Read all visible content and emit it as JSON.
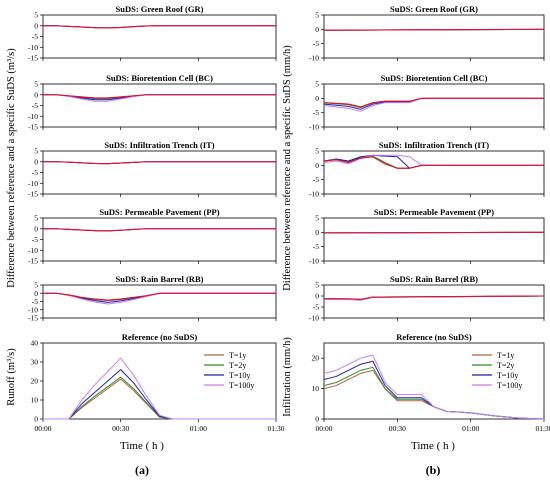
{
  "figure": {
    "panel_labels": [
      "(a)",
      "(b)"
    ],
    "left_ylabel_top": "Difference between reference and a specific SuDS (m³/s)",
    "right_ylabel_top": "Difference between reference and a specific SuDS (mm/h)",
    "left_ylabel_bottom": "Runoff (m³/s)",
    "right_ylabel_bottom": "Infiltration (mm/h)",
    "xlabel": "Time ( h )",
    "xticks": [
      "00:00",
      "00:30",
      "01:00",
      "01:30"
    ],
    "legend": [
      "T=1y",
      "T=2y",
      "T=10y",
      "T=100y"
    ],
    "colors": {
      "T=1y": "#b0643c",
      "T=2y": "#2e8b2e",
      "T=10y": "#1f1fb4",
      "T=100y": "#c87ef0",
      "red": "#e0102a"
    }
  },
  "chart_data": [
    {
      "type": "line",
      "title": "SuDS: Green Roof (GR)",
      "ylim": [
        -15,
        5
      ],
      "yticks": [
        5,
        0,
        -5,
        -10,
        -15
      ],
      "x": [
        0,
        5,
        10,
        15,
        20,
        25,
        30,
        35,
        40,
        45,
        90
      ],
      "series": [
        {
          "name": "T=1y",
          "values": [
            0,
            0,
            -0.3,
            -0.6,
            -0.9,
            -1.0,
            -0.8,
            -0.4,
            -0.1,
            0,
            0
          ]
        },
        {
          "name": "T=2y",
          "values": [
            0,
            0,
            -0.3,
            -0.6,
            -0.9,
            -1.0,
            -0.8,
            -0.4,
            -0.1,
            0,
            0
          ]
        },
        {
          "name": "T=10y",
          "values": [
            0,
            0,
            -0.3,
            -0.6,
            -0.9,
            -1.0,
            -0.8,
            -0.4,
            -0.1,
            0,
            0
          ]
        },
        {
          "name": "T=100y",
          "values": [
            0,
            0,
            -0.3,
            -0.6,
            -0.9,
            -1.0,
            -0.8,
            -0.4,
            -0.1,
            0,
            0
          ]
        }
      ]
    },
    {
      "type": "line",
      "title": "SuDS: Bioretention Cell (BC)",
      "ylim": [
        -15,
        5
      ],
      "yticks": [
        5,
        0,
        -5,
        -10,
        -15
      ],
      "x": [
        0,
        5,
        10,
        15,
        20,
        25,
        30,
        35,
        40,
        45,
        90
      ],
      "series": [
        {
          "name": "T=1y",
          "values": [
            0,
            0,
            -0.5,
            -1.0,
            -1.5,
            -1.5,
            -1.0,
            -0.5,
            0,
            0,
            0
          ]
        },
        {
          "name": "T=2y",
          "values": [
            0,
            0,
            -0.5,
            -1.2,
            -1.8,
            -1.8,
            -1.2,
            -0.6,
            0,
            0,
            0
          ]
        },
        {
          "name": "T=10y",
          "values": [
            0,
            0,
            -0.6,
            -1.5,
            -2.3,
            -2.3,
            -1.5,
            -0.7,
            0,
            0,
            0
          ]
        },
        {
          "name": "T=100y",
          "values": [
            0,
            0,
            -0.8,
            -2.0,
            -3.0,
            -3.0,
            -2.0,
            -0.9,
            0,
            0,
            0
          ]
        }
      ]
    },
    {
      "type": "line",
      "title": "SuDS: Infiltration Trench (IT)",
      "ylim": [
        -15,
        5
      ],
      "yticks": [
        5,
        0,
        -5,
        -10,
        -15
      ],
      "x": [
        0,
        5,
        10,
        15,
        20,
        25,
        30,
        35,
        40,
        45,
        90
      ],
      "series": [
        {
          "name": "T=1y",
          "values": [
            0,
            0,
            -0.2,
            -0.5,
            -0.8,
            -0.9,
            -0.6,
            -0.3,
            0,
            0,
            0
          ]
        },
        {
          "name": "T=2y",
          "values": [
            0,
            0,
            -0.2,
            -0.5,
            -0.8,
            -0.9,
            -0.6,
            -0.3,
            0,
            0,
            0
          ]
        },
        {
          "name": "T=10y",
          "values": [
            0,
            0,
            -0.2,
            -0.5,
            -0.8,
            -0.9,
            -0.6,
            -0.3,
            0,
            0,
            0
          ]
        },
        {
          "name": "T=100y",
          "values": [
            0,
            0,
            -0.2,
            -0.5,
            -0.8,
            -0.9,
            -0.6,
            -0.3,
            0,
            0,
            0
          ]
        }
      ]
    },
    {
      "type": "line",
      "title": "SuDS:  Permeable Pavement (PP)",
      "ylim": [
        -15,
        5
      ],
      "yticks": [
        5,
        0,
        -5,
        -10,
        -15
      ],
      "x": [
        0,
        5,
        10,
        15,
        20,
        25,
        30,
        35,
        40,
        45,
        90
      ],
      "series": [
        {
          "name": "T=1y",
          "values": [
            0,
            0,
            -0.3,
            -0.6,
            -0.9,
            -1.0,
            -0.7,
            -0.3,
            0,
            0,
            0
          ]
        },
        {
          "name": "T=2y",
          "values": [
            0,
            0,
            -0.3,
            -0.6,
            -0.9,
            -1.0,
            -0.7,
            -0.3,
            0,
            0,
            0
          ]
        },
        {
          "name": "T=10y",
          "values": [
            0,
            0,
            -0.3,
            -0.6,
            -0.9,
            -1.0,
            -0.7,
            -0.3,
            0,
            0,
            0
          ]
        },
        {
          "name": "T=100y",
          "values": [
            0,
            0,
            -0.3,
            -0.6,
            -0.9,
            -1.0,
            -0.7,
            -0.3,
            0,
            0,
            0
          ]
        }
      ]
    },
    {
      "type": "line",
      "title": "SuDS: Rain Barrel (RB)",
      "ylim": [
        -15,
        5
      ],
      "yticks": [
        5,
        0,
        -5,
        -10,
        -15
      ],
      "x": [
        0,
        5,
        10,
        15,
        20,
        25,
        30,
        35,
        40,
        45,
        90
      ],
      "series": [
        {
          "name": "T=1y",
          "values": [
            0,
            0,
            -1.0,
            -2.5,
            -3.5,
            -4.2,
            -3.5,
            -2.5,
            -1.5,
            0,
            0
          ]
        },
        {
          "name": "T=2y",
          "values": [
            0,
            0,
            -1.1,
            -2.7,
            -3.8,
            -4.5,
            -3.8,
            -2.7,
            -1.6,
            0,
            0
          ]
        },
        {
          "name": "T=10y",
          "values": [
            0,
            0,
            -1.2,
            -3.0,
            -4.5,
            -5.5,
            -4.6,
            -3.2,
            -1.8,
            0,
            0
          ]
        },
        {
          "name": "T=100y",
          "values": [
            0,
            0,
            -1.4,
            -3.5,
            -5.3,
            -6.5,
            -5.5,
            -3.8,
            -2.0,
            0,
            0
          ]
        }
      ]
    },
    {
      "type": "line",
      "title": "Reference (no SuDS)",
      "ylim": [
        0,
        40
      ],
      "yticks": [
        0,
        10,
        20,
        30,
        40
      ],
      "x": [
        0,
        10,
        15,
        20,
        25,
        30,
        35,
        40,
        45,
        50,
        90
      ],
      "series": [
        {
          "name": "T=1y",
          "values": [
            0,
            0,
            6,
            11,
            16,
            21,
            15,
            8,
            1,
            0,
            0
          ]
        },
        {
          "name": "T=2y",
          "values": [
            0,
            0,
            6.5,
            12,
            17,
            22,
            16,
            8.5,
            1.2,
            0,
            0
          ]
        },
        {
          "name": "T=10y",
          "values": [
            0,
            0,
            8,
            14,
            20,
            26,
            19,
            10,
            1.5,
            0,
            0
          ]
        },
        {
          "name": "T=100y",
          "values": [
            0,
            0,
            10,
            18,
            25,
            32,
            23,
            12,
            2,
            0,
            0
          ]
        }
      ],
      "legend": "right"
    },
    {
      "type": "line",
      "title": "SuDS: Green Roof (GR)",
      "ylim": [
        -10,
        5
      ],
      "yticks": [
        5,
        0,
        -5,
        -10
      ],
      "x": [
        0,
        90
      ],
      "series": [
        {
          "name": "T=1y",
          "values": [
            -0.3,
            0
          ]
        },
        {
          "name": "T=2y",
          "values": [
            -0.3,
            0
          ]
        },
        {
          "name": "T=10y",
          "values": [
            -0.3,
            0
          ]
        },
        {
          "name": "T=100y",
          "values": [
            -0.3,
            0
          ]
        }
      ]
    },
    {
      "type": "line",
      "title": "SuDS: Bioretention Cell (BC)",
      "ylim": [
        -10,
        5
      ],
      "yticks": [
        5,
        0,
        -5,
        -10
      ],
      "x": [
        0,
        10,
        15,
        20,
        25,
        30,
        35,
        40,
        45,
        90
      ],
      "series": [
        {
          "name": "T=1y",
          "values": [
            -1.5,
            -2.0,
            -3.0,
            -1.5,
            -1.0,
            -1.0,
            -1.0,
            0,
            0,
            0
          ]
        },
        {
          "name": "T=2y",
          "values": [
            -1.6,
            -2.2,
            -3.2,
            -1.6,
            -1.1,
            -1.1,
            -1.1,
            0,
            0,
            0
          ]
        },
        {
          "name": "T=10y",
          "values": [
            -2.0,
            -2.8,
            -3.8,
            -2.0,
            -1.3,
            -1.3,
            -1.3,
            0,
            0,
            0
          ]
        },
        {
          "name": "T=100y",
          "values": [
            -2.5,
            -3.5,
            -4.5,
            -2.5,
            -1.5,
            -1.5,
            -1.5,
            0,
            0,
            0
          ]
        }
      ]
    },
    {
      "type": "line",
      "title": "SuDS: Infiltration Trench (IT)",
      "ylim": [
        -10,
        5
      ],
      "yticks": [
        5,
        0,
        -5,
        -10
      ],
      "x": [
        0,
        5,
        10,
        15,
        20,
        25,
        30,
        35,
        40,
        45,
        50,
        90
      ],
      "series": [
        {
          "name": "T=1y",
          "values": [
            1.5,
            2.0,
            1.0,
            2.5,
            3.0,
            0.5,
            -1.0,
            -1.0,
            0,
            0,
            0,
            0
          ]
        },
        {
          "name": "T=2y",
          "values": [
            1.5,
            2.0,
            1.2,
            2.8,
            3.2,
            1.0,
            -1.0,
            -1.0,
            0,
            0,
            0,
            0
          ]
        },
        {
          "name": "T=10y",
          "values": [
            1.5,
            2.2,
            1.5,
            3.0,
            3.5,
            3.2,
            3.0,
            -1.0,
            0,
            0,
            0,
            0
          ]
        },
        {
          "name": "T=100y",
          "values": [
            1.0,
            1.5,
            0.5,
            2.5,
            3.5,
            3.5,
            3.5,
            3.0,
            0,
            0,
            0,
            0
          ]
        }
      ]
    },
    {
      "type": "line",
      "title": "SuDS:  Permeable Pavement (PP)",
      "ylim": [
        -10,
        5
      ],
      "yticks": [
        5,
        0,
        -5,
        -10
      ],
      "x": [
        0,
        90
      ],
      "series": [
        {
          "name": "T=1y",
          "values": [
            -0.2,
            0
          ]
        },
        {
          "name": "T=2y",
          "values": [
            -0.2,
            0
          ]
        },
        {
          "name": "T=10y",
          "values": [
            -0.2,
            0
          ]
        },
        {
          "name": "T=100y",
          "values": [
            -0.2,
            0
          ]
        }
      ]
    },
    {
      "type": "line",
      "title": "SuDS: Rain Barrel (RB)",
      "ylim": [
        -10,
        5
      ],
      "yticks": [
        5,
        0,
        -5,
        -10
      ],
      "x": [
        0,
        10,
        15,
        20,
        90
      ],
      "series": [
        {
          "name": "T=1y",
          "values": [
            -1.2,
            -1.3,
            -1.5,
            -0.5,
            0
          ]
        },
        {
          "name": "T=2y",
          "values": [
            -1.3,
            -1.4,
            -1.6,
            -0.5,
            0
          ]
        },
        {
          "name": "T=10y",
          "values": [
            -1.4,
            -1.5,
            -1.8,
            -0.6,
            0
          ]
        },
        {
          "name": "T=100y",
          "values": [
            -1.5,
            -1.6,
            -2.0,
            -0.6,
            0
          ]
        }
      ]
    },
    {
      "type": "line",
      "title": "Reference (no SuDS)",
      "ylim": [
        0,
        25
      ],
      "yticks": [
        0,
        10,
        20
      ],
      "x": [
        0,
        5,
        10,
        15,
        20,
        25,
        30,
        35,
        40,
        45,
        50,
        55,
        60,
        70,
        80,
        90
      ],
      "series": [
        {
          "name": "T=1y",
          "values": [
            10,
            11,
            13,
            15,
            16,
            10,
            6,
            6,
            6,
            4,
            2.5,
            2.3,
            2,
            1,
            0.3,
            0
          ]
        },
        {
          "name": "T=2y",
          "values": [
            11,
            12,
            14,
            16,
            17,
            10,
            6.5,
            6.5,
            6.5,
            4,
            2.5,
            2.3,
            2,
            1,
            0.3,
            0
          ]
        },
        {
          "name": "T=10y",
          "values": [
            13,
            14,
            16,
            18,
            19,
            11,
            7,
            7,
            7,
            4,
            2.5,
            2.3,
            2,
            1,
            0.3,
            0
          ]
        },
        {
          "name": "T=100y",
          "values": [
            15,
            16,
            18,
            20,
            21,
            12,
            8,
            8,
            8,
            4,
            2.5,
            2.3,
            2,
            1,
            0.3,
            0
          ]
        }
      ],
      "legend": "right"
    }
  ]
}
